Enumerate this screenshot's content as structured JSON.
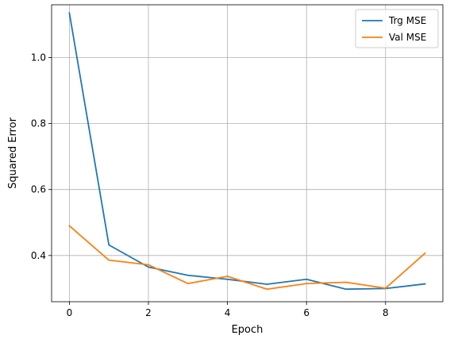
{
  "chart_data": {
    "type": "line",
    "title": "",
    "xlabel": "Epoch",
    "ylabel": "Squared Error",
    "xlim": [
      -0.45,
      9.45
    ],
    "ylim": [
      0.26,
      1.16
    ],
    "xticks": [
      0,
      2,
      4,
      6,
      8
    ],
    "yticks": [
      0.4,
      0.6,
      0.8,
      1.0
    ],
    "xtick_labels": [
      "0",
      "2",
      "4",
      "6",
      "8"
    ],
    "ytick_labels": [
      "0.4",
      "0.6",
      "0.8",
      "1.0"
    ],
    "grid": true,
    "legend_position": "top-right",
    "x": [
      0,
      1,
      2,
      3,
      4,
      5,
      6,
      7,
      8,
      9
    ],
    "series": [
      {
        "name": "Trg MSE",
        "color": "#1f77b4",
        "values": [
          1.135,
          0.432,
          0.365,
          0.34,
          0.328,
          0.313,
          0.328,
          0.298,
          0.3,
          0.314
        ]
      },
      {
        "name": "Val MSE",
        "color": "#ff7f0e",
        "values": [
          0.49,
          0.386,
          0.372,
          0.315,
          0.337,
          0.298,
          0.315,
          0.319,
          0.301,
          0.407
        ]
      }
    ]
  }
}
